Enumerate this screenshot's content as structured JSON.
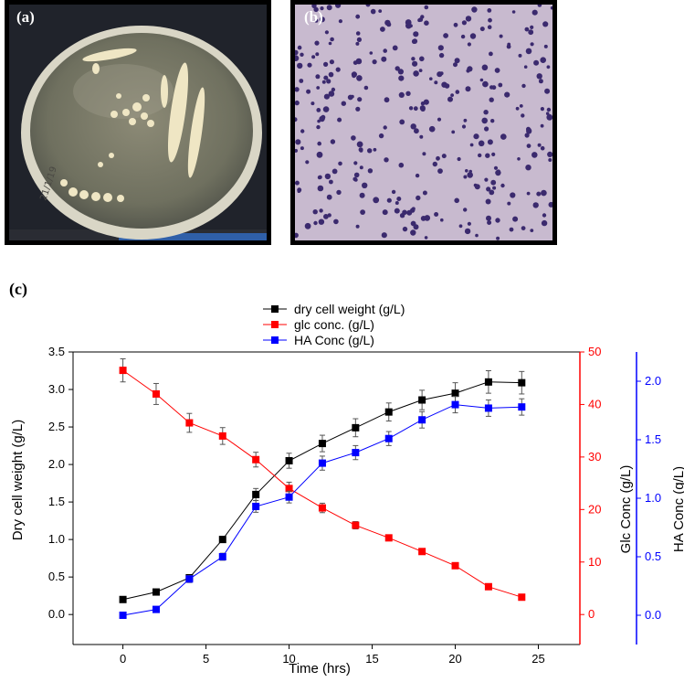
{
  "panels": {
    "a_label": "(a)",
    "b_label": "(b)",
    "c_label": "(c)",
    "a_plate_text": "21/1/19"
  },
  "colors": {
    "dry_cell": "#000000",
    "glc": "#ff0000",
    "ha": "#0000ff"
  },
  "chart_data": {
    "type": "line",
    "xlabel": "Time (hrs)",
    "ylabel_left": "Dry cell weight (g/L)",
    "ylabel_right1": "Glc Conc (g/L)",
    "ylabel_right2": "HA Conc (g/L)",
    "xlim": [
      -3,
      27.5
    ],
    "xticks": [
      0,
      5,
      10,
      15,
      20,
      25
    ],
    "left_axis": {
      "ylim": [
        -0.4,
        3.5
      ],
      "ticks": [
        0.0,
        0.5,
        1.0,
        1.5,
        2.0,
        2.5,
        3.0,
        3.5
      ],
      "tick_labels": [
        "0.0",
        "0.5",
        "1.0",
        "1.5",
        "2.0",
        "2.5",
        "3.0",
        "3.5"
      ]
    },
    "right1_axis": {
      "ylim": [
        -5.71,
        50
      ],
      "ticks": [
        0,
        10,
        20,
        30,
        40,
        50
      ],
      "tick_labels": [
        "0",
        "10",
        "20",
        "30",
        "40",
        "50"
      ]
    },
    "right2_axis": {
      "ylim": [
        -0.25,
        2.25
      ],
      "ticks": [
        0.0,
        0.5,
        1.0,
        1.5,
        2.0
      ],
      "tick_labels": [
        "0.0",
        "0.5",
        "1.0",
        "1.5",
        "2.0"
      ]
    },
    "legend": "top-center",
    "series": [
      {
        "name": "dry cell weight (g/L)",
        "axis": "left",
        "color": "#000000",
        "x": [
          0,
          2,
          4,
          6,
          8,
          10,
          12,
          14,
          16,
          18,
          20,
          22,
          24
        ],
        "y": [
          0.2,
          0.3,
          0.49,
          1.0,
          1.6,
          2.05,
          2.28,
          2.49,
          2.7,
          2.86,
          2.95,
          3.1,
          3.09
        ],
        "err": [
          0.03,
          0.03,
          0.03,
          0.04,
          0.08,
          0.1,
          0.11,
          0.12,
          0.12,
          0.13,
          0.14,
          0.15,
          0.15
        ]
      },
      {
        "name": "glc conc. (g/L)",
        "axis": "right1",
        "color": "#ff0000",
        "x": [
          0,
          2,
          4,
          6,
          8,
          10,
          12,
          14,
          16,
          18,
          20,
          22,
          24
        ],
        "y": [
          46.5,
          42.0,
          36.5,
          34.0,
          29.5,
          24.0,
          20.3,
          17.0,
          14.6,
          12.0,
          9.3,
          5.3,
          3.3
        ],
        "err": [
          2.2,
          2.0,
          1.8,
          1.6,
          1.4,
          1.2,
          0.9,
          0.7,
          0.5,
          0.4,
          0.3,
          0.3,
          0.2
        ]
      },
      {
        "name": "HA Conc (g/L)",
        "axis": "right2",
        "color": "#0000ff",
        "x": [
          0,
          2,
          4,
          6,
          8,
          10,
          12,
          14,
          16,
          18,
          20,
          22,
          24
        ],
        "y": [
          0.0,
          0.05,
          0.31,
          0.5,
          0.93,
          1.01,
          1.3,
          1.39,
          1.51,
          1.67,
          1.8,
          1.77,
          1.78
        ],
        "err": [
          0.02,
          0.02,
          0.03,
          0.03,
          0.05,
          0.05,
          0.06,
          0.06,
          0.06,
          0.07,
          0.07,
          0.07,
          0.07
        ]
      }
    ]
  }
}
